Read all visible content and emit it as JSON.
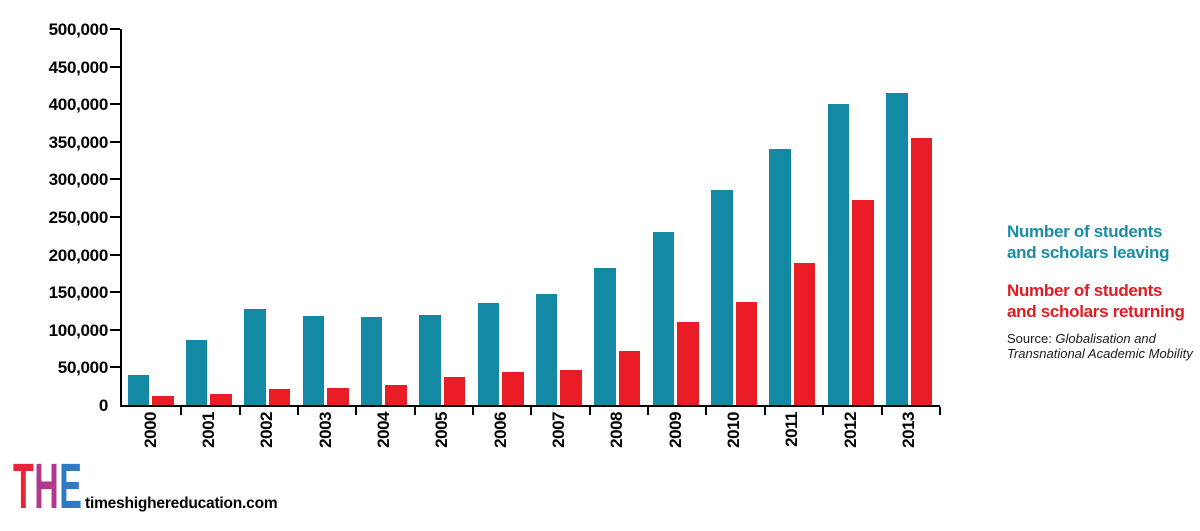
{
  "chart_data": {
    "type": "bar",
    "title": "",
    "xlabel": "",
    "ylabel": "",
    "categories": [
      "2000",
      "2001",
      "2002",
      "2003",
      "2004",
      "2005",
      "2006",
      "2007",
      "2008",
      "2009",
      "2010",
      "2011",
      "2012",
      "2013"
    ],
    "series": [
      {
        "name": "Number of students and scholars leaving",
        "color": "#1489A3",
        "values": [
          40000,
          87000,
          127000,
          119000,
          117000,
          120000,
          136000,
          147000,
          182000,
          230000,
          286000,
          341000,
          400000,
          415000
        ]
      },
      {
        "name": "Number of students and scholars returning",
        "color": "#EA1C25",
        "values": [
          12000,
          15000,
          21000,
          23000,
          27000,
          37000,
          44000,
          47000,
          72000,
          110000,
          137000,
          189000,
          273000,
          355000
        ]
      }
    ],
    "ylim": [
      0,
      500000
    ],
    "y_ticks": [
      {
        "v": 500000,
        "label": "500,000"
      },
      {
        "v": 450000,
        "label": "450,000"
      },
      {
        "v": 400000,
        "label": "400,000"
      },
      {
        "v": 350000,
        "label": "350,000"
      },
      {
        "v": 300000,
        "label": "300,000"
      },
      {
        "v": 250000,
        "label": "250,000"
      },
      {
        "v": 200000,
        "label": "200,000"
      },
      {
        "v": 150000,
        "label": "150,000"
      },
      {
        "v": 100000,
        "label": "100,000"
      },
      {
        "v": 50000,
        "label": "50,000"
      },
      {
        "v": 0,
        "label": "0"
      }
    ],
    "grid": false,
    "legend_position": "right"
  },
  "legend": {
    "leaving": {
      "lines": [
        "Number of students",
        "and scholars leaving"
      ],
      "color": "#1B8CA4"
    },
    "returning": {
      "lines": [
        "Number of students",
        "and scholars returning"
      ],
      "color": "#E11B23"
    }
  },
  "source": {
    "prefix": "Source: ",
    "italic": "Globalisation and Transnational Academic Mobility"
  },
  "footer": {
    "logo_letters": [
      {
        "char": "T",
        "color": "#EB2439"
      },
      {
        "char": "H",
        "color": "#B4378F"
      },
      {
        "char": "E",
        "color": "#2F7AC1"
      }
    ],
    "website": "timeshighereducation.com"
  }
}
